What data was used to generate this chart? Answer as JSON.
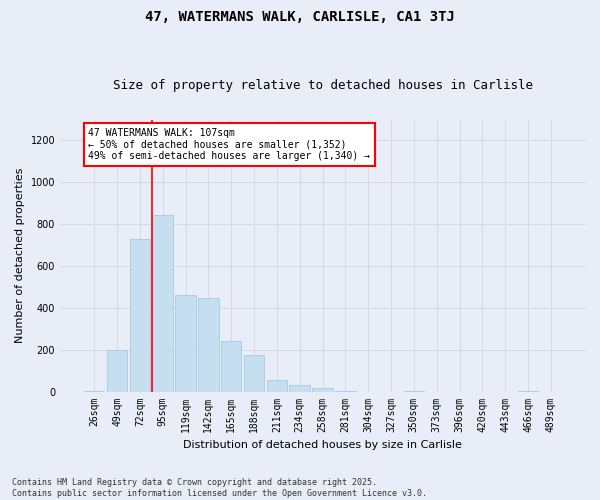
{
  "title1": "47, WATERMANS WALK, CARLISLE, CA1 3TJ",
  "title2": "Size of property relative to detached houses in Carlisle",
  "xlabel": "Distribution of detached houses by size in Carlisle",
  "ylabel": "Number of detached properties",
  "footer1": "Contains HM Land Registry data © Crown copyright and database right 2025.",
  "footer2": "Contains public sector information licensed under the Open Government Licence v3.0.",
  "bin_labels": [
    "26sqm",
    "49sqm",
    "72sqm",
    "95sqm",
    "119sqm",
    "142sqm",
    "165sqm",
    "188sqm",
    "211sqm",
    "234sqm",
    "258sqm",
    "281sqm",
    "304sqm",
    "327sqm",
    "350sqm",
    "373sqm",
    "396sqm",
    "420sqm",
    "443sqm",
    "466sqm",
    "489sqm"
  ],
  "bar_values": [
    5,
    200,
    730,
    845,
    460,
    445,
    240,
    175,
    55,
    30,
    15,
    5,
    0,
    0,
    5,
    0,
    0,
    0,
    0,
    5,
    0
  ],
  "bar_color": "#c5dff0",
  "bar_edge_color": "#a0c4e0",
  "vline_x_index": 3.0,
  "vline_color": "red",
  "annotation_text": "47 WATERMANS WALK: 107sqm\n← 50% of detached houses are smaller (1,352)\n49% of semi-detached houses are larger (1,340) →",
  "ylim": [
    0,
    1300
  ],
  "yticks": [
    0,
    200,
    400,
    600,
    800,
    1000,
    1200
  ],
  "grid_color": "#d0d8e8",
  "background_color": "#e8edf8",
  "plot_bg_color": "#e8edf8",
  "title_fontsize": 10,
  "subtitle_fontsize": 9,
  "ylabel_fontsize": 8,
  "xlabel_fontsize": 8,
  "tick_fontsize": 7,
  "footer_fontsize": 6
}
